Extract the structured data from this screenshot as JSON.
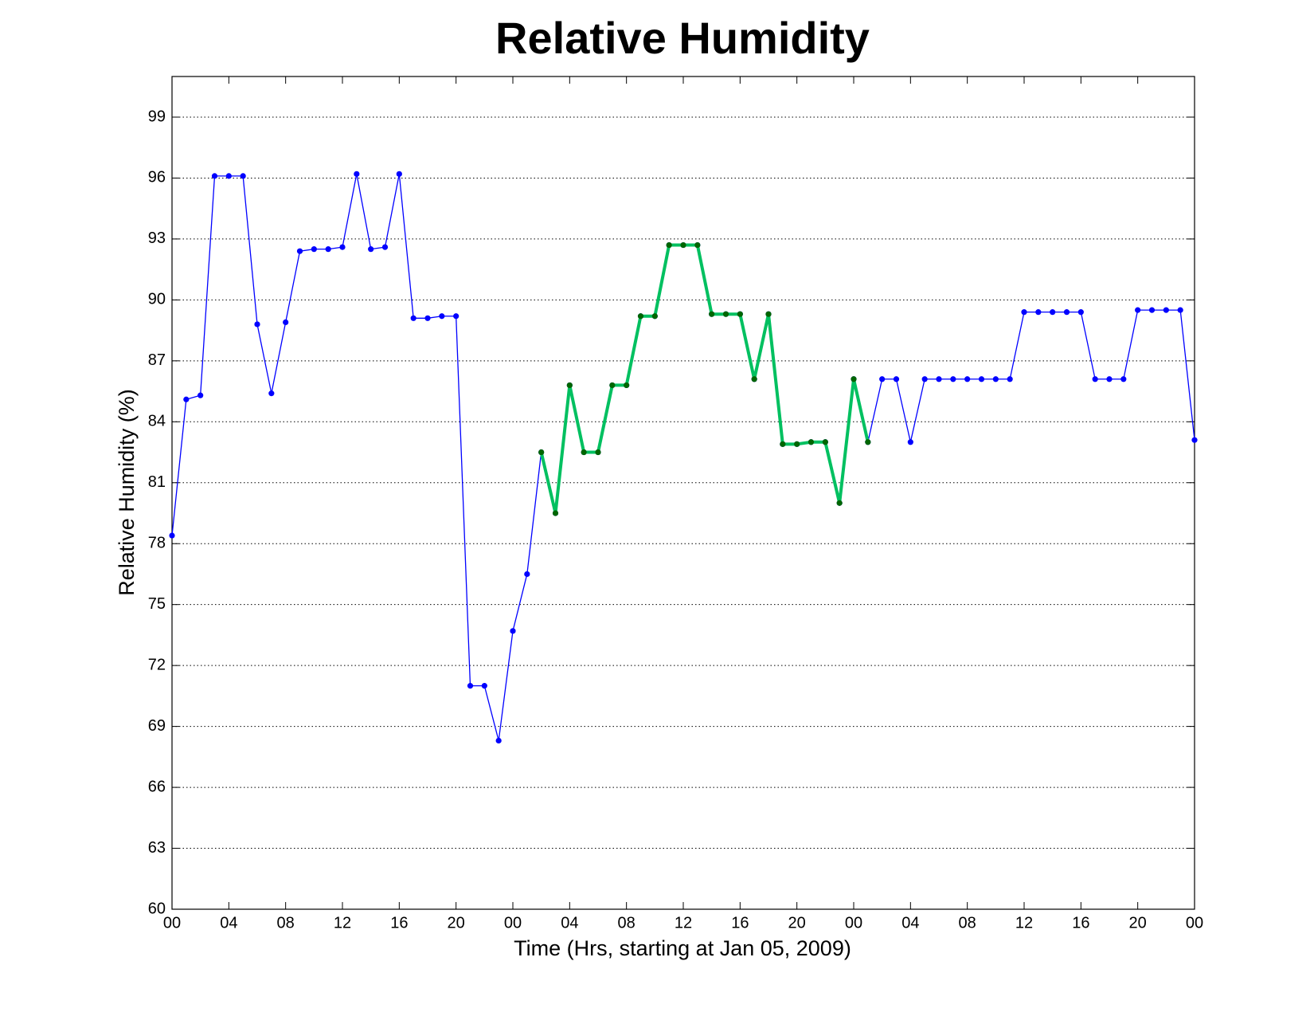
{
  "chart_data": {
    "type": "line",
    "title": "Relative Humidity",
    "xlabel": "Time (Hrs, starting at Jan 05, 2009)",
    "ylabel": "Relative Humidity (%)",
    "xlim": [
      0,
      72
    ],
    "ylim": [
      60,
      101
    ],
    "xticks": [
      {
        "value": 0,
        "label": "00"
      },
      {
        "value": 4,
        "label": "04"
      },
      {
        "value": 8,
        "label": "08"
      },
      {
        "value": 12,
        "label": "12"
      },
      {
        "value": 16,
        "label": "16"
      },
      {
        "value": 20,
        "label": "20"
      },
      {
        "value": 24,
        "label": "00"
      },
      {
        "value": 28,
        "label": "04"
      },
      {
        "value": 32,
        "label": "08"
      },
      {
        "value": 36,
        "label": "12"
      },
      {
        "value": 40,
        "label": "16"
      },
      {
        "value": 44,
        "label": "20"
      },
      {
        "value": 48,
        "label": "00"
      },
      {
        "value": 52,
        "label": "04"
      },
      {
        "value": 56,
        "label": "08"
      },
      {
        "value": 60,
        "label": "12"
      },
      {
        "value": 64,
        "label": "16"
      },
      {
        "value": 68,
        "label": "20"
      },
      {
        "value": 72,
        "label": "00"
      }
    ],
    "yticks": [
      60,
      63,
      66,
      69,
      72,
      75,
      78,
      81,
      84,
      87,
      90,
      93,
      96,
      99
    ],
    "ygrid": true,
    "series": [
      {
        "color": "#0000ff",
        "marker_color": "#0000ff",
        "line_width": 1.3,
        "x": [
          0,
          1,
          2,
          3,
          4,
          5,
          6,
          7,
          8,
          9,
          10,
          11,
          12,
          13,
          14,
          15,
          16,
          17,
          18,
          19,
          20,
          21,
          22,
          23,
          24,
          25,
          26,
          27,
          28,
          29,
          30,
          31,
          32,
          33,
          34,
          35,
          36,
          37,
          38,
          39,
          40,
          41,
          42,
          43,
          44,
          45,
          46,
          47,
          48,
          49,
          50,
          51,
          52,
          53,
          54,
          55,
          56,
          57,
          58,
          59,
          60,
          61,
          62,
          63,
          64,
          65,
          66,
          67,
          68,
          69,
          70,
          71,
          72
        ],
        "values": [
          78.4,
          85.1,
          85.3,
          96.1,
          96.1,
          96.1,
          88.8,
          85.4,
          88.9,
          92.4,
          92.5,
          92.5,
          92.6,
          96.2,
          92.5,
          92.6,
          96.2,
          89.1,
          89.1,
          89.2,
          89.2,
          71.0,
          71.0,
          68.3,
          73.7,
          76.5,
          82.5,
          79.5,
          85.8,
          82.5,
          82.5,
          85.8,
          85.8,
          89.2,
          89.2,
          92.7,
          92.7,
          92.7,
          89.3,
          89.3,
          89.3,
          86.1,
          89.3,
          82.9,
          82.9,
          83.0,
          83.0,
          80.0,
          86.1,
          83.0,
          86.1,
          86.1,
          83.0,
          86.1,
          86.1,
          86.1,
          86.1,
          86.1,
          86.1,
          86.1,
          89.4,
          89.4,
          89.4,
          89.4,
          89.4,
          86.1,
          86.1,
          86.1,
          89.5,
          89.5,
          89.5,
          89.5,
          83.1
        ]
      },
      {
        "color": "#00c060",
        "marker_color": "#006600",
        "line_width": 4,
        "x": [
          26,
          27,
          28,
          29,
          30,
          31,
          32,
          33,
          34,
          35,
          36,
          37,
          38,
          39,
          40,
          41,
          42,
          43,
          44,
          45,
          46,
          47,
          48,
          49
        ],
        "values": [
          82.5,
          79.5,
          85.8,
          82.5,
          82.5,
          85.8,
          85.8,
          89.2,
          89.2,
          92.7,
          92.7,
          92.7,
          89.3,
          89.3,
          89.3,
          86.1,
          89.3,
          82.9,
          82.9,
          83.0,
          83.0,
          80.0,
          86.1,
          83.0
        ]
      }
    ]
  }
}
